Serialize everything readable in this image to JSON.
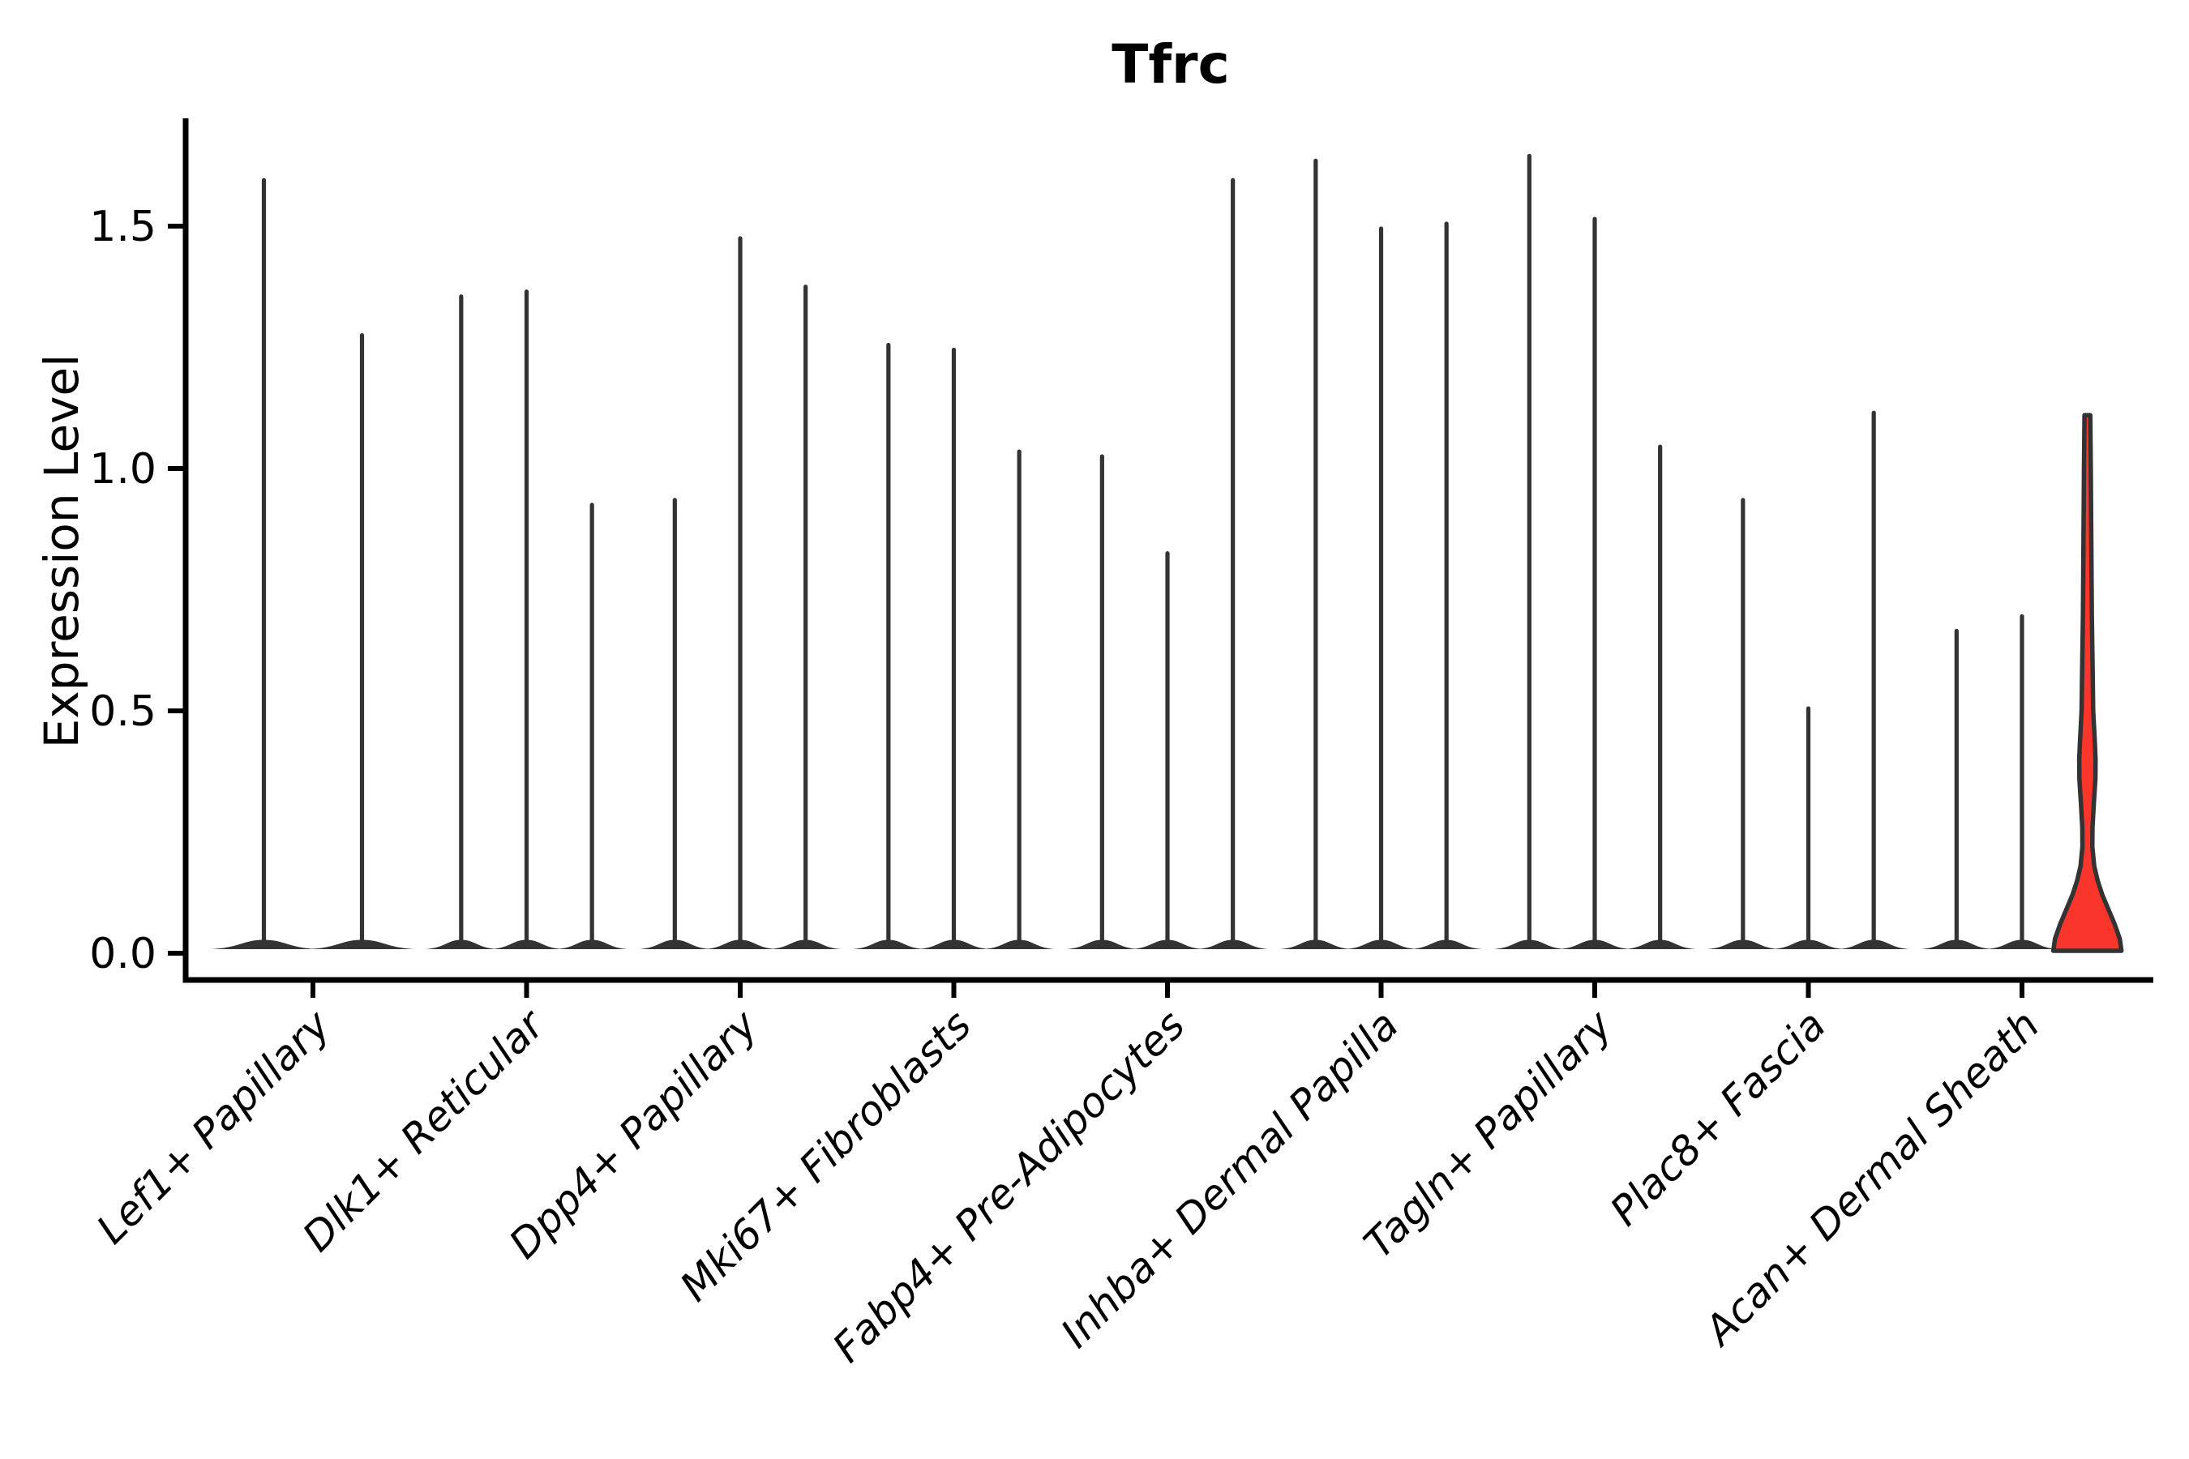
{
  "chart_data": {
    "type": "violin",
    "title": "Tfrc",
    "ylabel": "Expression Level",
    "xlabel": "",
    "grid": false,
    "legend_position": "none",
    "ylim": [
      -0.06,
      1.72
    ],
    "ytick_values": [
      0.0,
      0.5,
      1.0,
      1.5
    ],
    "ytick_labels": [
      "0.0",
      "0.5",
      "1.0",
      "1.5"
    ],
    "categories": [
      "Lef1+ Papillary",
      "Dlk1+ Reticular",
      "Dpp4+ Papillary",
      "Mki67+ Fibroblasts",
      "Fabp4+ Pre-Adipocytes",
      "Inhba+ Dermal Papilla",
      "Tagln+ Papillary",
      "Plac8+ Fascia",
      "Acan+ Dermal Sheath"
    ],
    "groups": [
      {
        "label": "Lef1+ Papillary",
        "violin_max_expression": [
          1.6,
          1.28
        ]
      },
      {
        "label": "Dlk1+ Reticular",
        "violin_max_expression": [
          1.36,
          1.37,
          0.93
        ]
      },
      {
        "label": "Dpp4+ Papillary",
        "violin_max_expression": [
          0.94,
          1.48,
          1.38
        ]
      },
      {
        "label": "Mki67+ Fibroblasts",
        "violin_max_expression": [
          1.26,
          1.25,
          1.04
        ]
      },
      {
        "label": "Fabp4+ Pre-Adipocytes",
        "violin_max_expression": [
          1.03,
          0.83,
          1.6
        ]
      },
      {
        "label": "Inhba+ Dermal Papilla",
        "violin_max_expression": [
          1.64,
          1.5,
          1.51
        ]
      },
      {
        "label": "Tagln+ Papillary",
        "violin_max_expression": [
          1.65,
          1.52,
          1.05
        ]
      },
      {
        "label": "Plac8+ Fascia",
        "violin_max_expression": [
          0.94,
          0.51,
          1.12
        ]
      },
      {
        "label": "Acan+ Dermal Sheath",
        "violin_max_expression": [
          0.67,
          0.7,
          1.11
        ],
        "highlighted_violin": 2
      }
    ],
    "highlighted_violin_profile": [
      [
        1.11,
        0.085
      ],
      [
        1.0,
        0.1
      ],
      [
        0.85,
        0.115
      ],
      [
        0.7,
        0.13
      ],
      [
        0.58,
        0.155
      ],
      [
        0.5,
        0.17
      ],
      [
        0.44,
        0.215
      ],
      [
        0.4,
        0.24
      ],
      [
        0.36,
        0.235
      ],
      [
        0.31,
        0.19
      ],
      [
        0.26,
        0.15
      ],
      [
        0.22,
        0.145
      ],
      [
        0.18,
        0.2
      ],
      [
        0.15,
        0.3
      ],
      [
        0.12,
        0.44
      ],
      [
        0.09,
        0.62
      ],
      [
        0.06,
        0.8
      ],
      [
        0.03,
        0.95
      ],
      [
        0.005,
        1.0
      ]
    ],
    "colors": {
      "violin_outline": "#333333",
      "highlight_fill": "#fa352b",
      "axis": "#000000",
      "background": "#ffffff"
    }
  }
}
